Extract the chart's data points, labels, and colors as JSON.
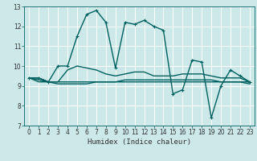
{
  "title": "",
  "xlabel": "Humidex (Indice chaleur)",
  "xlim": [
    -0.5,
    23.5
  ],
  "ylim": [
    7,
    13
  ],
  "xticks": [
    0,
    1,
    2,
    3,
    4,
    5,
    6,
    7,
    8,
    9,
    10,
    11,
    12,
    13,
    14,
    15,
    16,
    17,
    18,
    19,
    20,
    21,
    22,
    23
  ],
  "yticks": [
    7,
    8,
    9,
    10,
    11,
    12,
    13
  ],
  "bg_color": "#cce8e8",
  "grid_color": "#ffffff",
  "line_color": "#006060",
  "lines": [
    {
      "x": [
        0,
        1,
        2,
        3,
        4,
        5,
        6,
        7,
        8,
        9,
        10,
        11,
        12,
        13,
        14,
        15,
        16,
        17,
        18,
        19,
        20,
        21,
        22,
        23
      ],
      "y": [
        9.4,
        9.4,
        9.2,
        10.0,
        10.0,
        11.5,
        12.6,
        12.8,
        12.2,
        9.9,
        12.2,
        12.1,
        12.3,
        12.0,
        11.8,
        8.6,
        8.8,
        10.3,
        10.2,
        7.4,
        9.0,
        9.8,
        9.5,
        9.2
      ],
      "marker": "+"
    },
    {
      "x": [
        0,
        1,
        2,
        3,
        4,
        5,
        6,
        7,
        8,
        9,
        10,
        11,
        12,
        13,
        14,
        15,
        16,
        17,
        18,
        19,
        20,
        21,
        22,
        23
      ],
      "y": [
        9.4,
        9.4,
        9.2,
        9.2,
        9.8,
        10.0,
        9.9,
        9.8,
        9.6,
        9.5,
        9.6,
        9.7,
        9.7,
        9.5,
        9.5,
        9.5,
        9.6,
        9.6,
        9.6,
        9.5,
        9.4,
        9.4,
        9.4,
        9.2
      ],
      "marker": null
    },
    {
      "x": [
        0,
        1,
        2,
        3,
        4,
        5,
        6,
        7,
        8,
        9,
        10,
        11,
        12,
        13,
        14,
        15,
        16,
        17,
        18,
        19,
        20,
        21,
        22,
        23
      ],
      "y": [
        9.4,
        9.2,
        9.2,
        9.1,
        9.1,
        9.1,
        9.1,
        9.2,
        9.2,
        9.2,
        9.3,
        9.3,
        9.3,
        9.3,
        9.3,
        9.3,
        9.3,
        9.3,
        9.3,
        9.3,
        9.2,
        9.2,
        9.2,
        9.1
      ],
      "marker": null
    },
    {
      "x": [
        0,
        1,
        2,
        3,
        4,
        5,
        6,
        7,
        8,
        9,
        10,
        11,
        12,
        13,
        14,
        15,
        16,
        17,
        18,
        19,
        20,
        21,
        22,
        23
      ],
      "y": [
        9.4,
        9.3,
        9.2,
        9.2,
        9.2,
        9.2,
        9.2,
        9.2,
        9.2,
        9.2,
        9.2,
        9.2,
        9.2,
        9.2,
        9.2,
        9.2,
        9.2,
        9.2,
        9.2,
        9.2,
        9.2,
        9.2,
        9.2,
        9.2
      ],
      "marker": null
    }
  ],
  "tick_fontsize": 5.5,
  "xlabel_fontsize": 6.5
}
